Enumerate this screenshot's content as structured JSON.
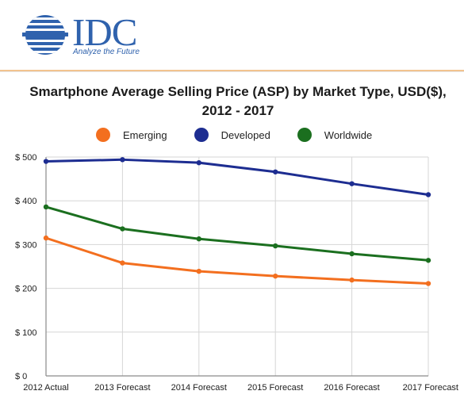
{
  "brand": {
    "name": "IDC",
    "tagline": "Analyze the Future"
  },
  "chart_data": {
    "type": "line",
    "title": "Smartphone Average Selling Price (ASP) by Market Type, USD($), 2012 - 2017",
    "xlabel": "",
    "ylabel": "",
    "categories": [
      "2012 Actual",
      "2013 Forecast",
      "2014 Forecast",
      "2015 Forecast",
      "2016 Forecast",
      "2017 Forecast"
    ],
    "y_ticks": [
      "$ 0",
      "$ 100",
      "$ 200",
      "$ 300",
      "$ 400",
      "$ 500"
    ],
    "ylim": [
      0,
      500
    ],
    "grid": true,
    "legend_position": "top",
    "series": [
      {
        "name": "Emerging",
        "color": "#f36f1f",
        "values": [
          315,
          258,
          239,
          228,
          219,
          211
        ]
      },
      {
        "name": "Developed",
        "color": "#1d2d91",
        "values": [
          490,
          494,
          487,
          466,
          439,
          414
        ]
      },
      {
        "name": "Worldwide",
        "color": "#1b6f1f",
        "values": [
          386,
          336,
          313,
          297,
          279,
          264
        ]
      }
    ]
  },
  "colors": {
    "brand_blue": "#2f62ad",
    "header_rule": "#f2c38f",
    "axis": "#8a8a8a",
    "grid": "#d6d6d6"
  }
}
